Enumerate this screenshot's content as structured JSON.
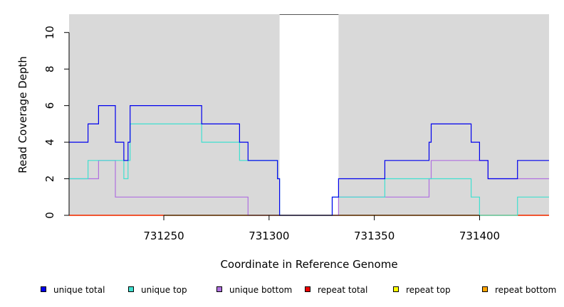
{
  "chart_data": {
    "type": "line",
    "xlabel": "Coordinate in Reference Genome",
    "ylabel": "Read Coverage Depth",
    "xlim": [
      731205,
      731433
    ],
    "ylim": [
      0,
      11
    ],
    "x_ticks": [
      731250,
      731300,
      731350,
      731400
    ],
    "y_ticks": [
      0,
      2,
      4,
      6,
      8,
      10
    ],
    "grid": false,
    "background_color": "#d9d9d9",
    "gap_region": {
      "x_start": 731305,
      "x_end": 731333,
      "color": "#ffffff"
    },
    "legend_position": "bottom",
    "series": [
      {
        "name": "unique total",
        "color": "#0000ee",
        "steps": [
          [
            731205,
            4
          ],
          [
            731214,
            5
          ],
          [
            731219,
            6
          ],
          [
            731227,
            4
          ],
          [
            731231,
            3
          ],
          [
            731233,
            4
          ],
          [
            731234,
            6
          ],
          [
            731268,
            5
          ],
          [
            731286,
            4
          ],
          [
            731290,
            3
          ],
          [
            731304,
            2
          ],
          [
            731305,
            0
          ],
          [
            731330,
            1
          ],
          [
            731333,
            2
          ],
          [
            731355,
            3
          ],
          [
            731376,
            4
          ],
          [
            731377,
            5
          ],
          [
            731396,
            4
          ],
          [
            731400,
            3
          ],
          [
            731404,
            2
          ],
          [
            731418,
            3
          ],
          [
            731433,
            3
          ]
        ]
      },
      {
        "name": "unique top",
        "color": "#40e0d0",
        "steps": [
          [
            731205,
            2
          ],
          [
            731214,
            3
          ],
          [
            731227,
            3
          ],
          [
            731231,
            2
          ],
          [
            731233,
            3
          ],
          [
            731234,
            5
          ],
          [
            731268,
            4
          ],
          [
            731286,
            3
          ],
          [
            731290,
            3
          ],
          [
            731304,
            2
          ],
          [
            731305,
            0
          ],
          [
            731330,
            1
          ],
          [
            731355,
            2
          ],
          [
            731396,
            1
          ],
          [
            731400,
            0
          ],
          [
            731418,
            1
          ],
          [
            731433,
            1
          ]
        ]
      },
      {
        "name": "unique bottom",
        "color": "#b070e0",
        "steps": [
          [
            731205,
            2
          ],
          [
            731219,
            3
          ],
          [
            731227,
            1
          ],
          [
            731290,
            0
          ],
          [
            731333,
            1
          ],
          [
            731376,
            2
          ],
          [
            731377,
            3
          ],
          [
            731404,
            2
          ],
          [
            731433,
            2
          ]
        ]
      },
      {
        "name": "repeat total",
        "color": "#ee0000",
        "steps": [
          [
            731205,
            0
          ],
          [
            731433,
            0
          ]
        ]
      },
      {
        "name": "repeat top",
        "color": "#ffff00",
        "steps": [
          [
            731205,
            0
          ],
          [
            731433,
            0
          ]
        ]
      },
      {
        "name": "repeat bottom",
        "color": "#ffa500",
        "steps": [
          [
            731205,
            0
          ],
          [
            731433,
            0
          ]
        ]
      }
    ]
  }
}
